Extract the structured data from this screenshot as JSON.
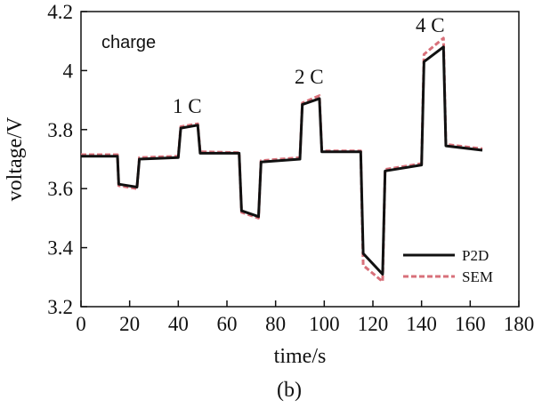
{
  "chart_data": {
    "type": "line",
    "xlabel": "time/s",
    "ylabel": "voltage/V",
    "xlim": [
      0,
      180
    ],
    "ylim": [
      3.2,
      4.2
    ],
    "xticks": [
      "0",
      "20",
      "40",
      "60",
      "80",
      "100",
      "120",
      "140",
      "160",
      "180"
    ],
    "yticks": [
      "3.2",
      "3.4",
      "3.6",
      "3.8",
      "4",
      "4.2"
    ],
    "grid": false,
    "legend_position": "bottom-right",
    "annotations": [
      {
        "text": "charge",
        "x": 7,
        "y": 4.1,
        "style": "sans"
      },
      {
        "text": "1 C",
        "x": 45,
        "y": 3.88,
        "style": "serif"
      },
      {
        "text": "2 C",
        "x": 97,
        "y": 3.96,
        "style": "serif"
      },
      {
        "text": "4 C",
        "x": 147,
        "y": 4.13,
        "style": "serif"
      }
    ],
    "series": [
      {
        "name": "P2D",
        "color": "#111111",
        "dash": "solid",
        "x": [
          0,
          15,
          15.5,
          23,
          24,
          40,
          41,
          48,
          49,
          65,
          66,
          73,
          74,
          90,
          91,
          98,
          99,
          115,
          116,
          124,
          125,
          140,
          141,
          149,
          150,
          165
        ],
        "y": [
          3.71,
          3.71,
          3.615,
          3.605,
          3.7,
          3.705,
          3.805,
          3.815,
          3.72,
          3.72,
          3.525,
          3.505,
          3.69,
          3.7,
          3.885,
          3.905,
          3.725,
          3.725,
          3.38,
          3.31,
          3.66,
          3.68,
          4.03,
          4.08,
          3.745,
          3.73
        ]
      },
      {
        "name": "SEM",
        "color": "#d8707a",
        "dash": "dashed",
        "x": [
          0,
          15,
          15.5,
          23,
          24,
          40,
          41,
          48,
          49,
          65,
          66,
          73,
          74,
          90,
          91,
          98,
          99,
          115,
          116,
          124,
          125,
          140,
          141,
          149,
          150,
          165
        ],
        "y": [
          3.715,
          3.715,
          3.61,
          3.6,
          3.705,
          3.71,
          3.81,
          3.82,
          3.725,
          3.722,
          3.52,
          3.5,
          3.695,
          3.705,
          3.89,
          3.915,
          3.728,
          3.728,
          3.34,
          3.285,
          3.665,
          3.685,
          4.055,
          4.11,
          3.75,
          3.735
        ]
      }
    ]
  },
  "caption": "(b)"
}
